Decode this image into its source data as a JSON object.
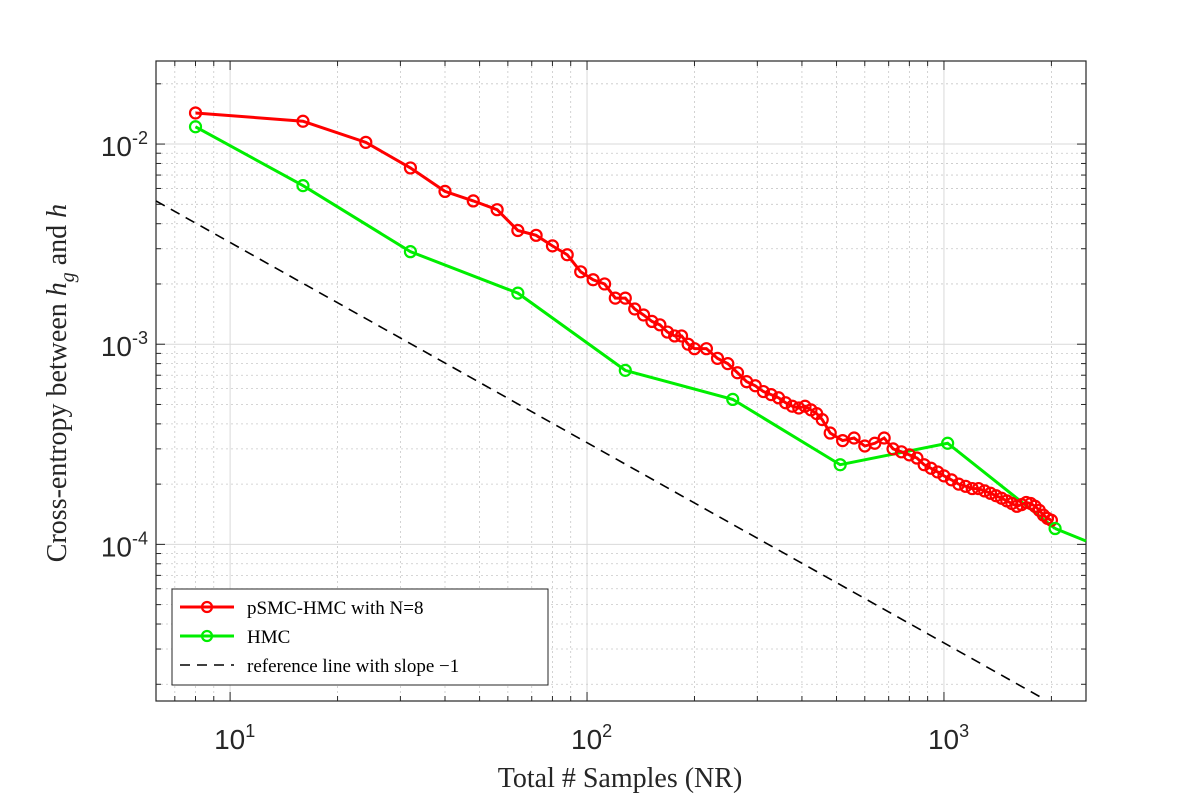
{
  "chart_data": {
    "type": "line",
    "xscale": "log",
    "yscale": "log",
    "xlim": [
      6.2,
      2500
    ],
    "ylim": [
      1.65e-05,
      0.026
    ],
    "xticks": [
      {
        "value": 10,
        "base": "10",
        "exp": "1"
      },
      {
        "value": 100,
        "base": "10",
        "exp": "2"
      },
      {
        "value": 1000,
        "base": "10",
        "exp": "3"
      }
    ],
    "yticks": [
      {
        "value": 0.0001,
        "base": "10",
        "exp": "-4"
      },
      {
        "value": 0.001,
        "base": "10",
        "exp": "-3"
      },
      {
        "value": 0.01,
        "base": "10",
        "exp": "-2"
      }
    ],
    "xlabel": "Total # Samples (NR)",
    "ylabel": {
      "prefix": "Cross-entropy between ",
      "var1": "h",
      "var1_sub": "g",
      "middle": " and ",
      "var2": "h"
    },
    "grid": true,
    "legend_position": "bottom-left",
    "colors": {
      "psmc": "#ff0000",
      "hmc": "#00ee00",
      "reference": "#000000"
    },
    "series": [
      {
        "name": "pSMC-HMC with N=8",
        "style": "solid-with-circle-markers",
        "color": "#ff0000",
        "x": [
          8,
          16,
          24,
          32,
          40,
          48,
          56,
          64,
          72,
          80,
          88,
          96,
          104,
          112,
          120,
          128,
          136,
          144,
          152,
          160,
          168,
          176,
          184,
          192,
          200,
          216,
          232,
          248,
          264,
          280,
          296,
          312,
          328,
          344,
          360,
          376,
          392,
          408,
          424,
          440,
          456,
          480,
          520,
          560,
          600,
          640,
          680,
          720,
          760,
          800,
          840,
          880,
          920,
          960,
          1000,
          1050,
          1100,
          1150,
          1200,
          1250,
          1300,
          1350,
          1400,
          1450,
          1500,
          1550,
          1600,
          1650,
          1700,
          1750,
          1800,
          1850,
          1900,
          1950,
          2000
        ],
        "y": [
          0.0143,
          0.013,
          0.0102,
          0.0076,
          0.0058,
          0.0052,
          0.0047,
          0.0037,
          0.0035,
          0.0031,
          0.0028,
          0.0023,
          0.0021,
          0.002,
          0.0017,
          0.0017,
          0.0015,
          0.0014,
          0.0013,
          0.00125,
          0.00115,
          0.0011,
          0.0011,
          0.001,
          0.00095,
          0.00095,
          0.00085,
          0.0008,
          0.00072,
          0.00065,
          0.00062,
          0.00058,
          0.00056,
          0.00054,
          0.00051,
          0.00049,
          0.00048,
          0.00049,
          0.00047,
          0.00045,
          0.00042,
          0.00036,
          0.00033,
          0.00034,
          0.00031,
          0.00032,
          0.00034,
          0.0003,
          0.00029,
          0.00028,
          0.00027,
          0.00025,
          0.00024,
          0.00023,
          0.00022,
          0.00021,
          0.0002,
          0.000195,
          0.00019,
          0.00019,
          0.000185,
          0.00018,
          0.000175,
          0.00017,
          0.000165,
          0.00016,
          0.000155,
          0.000158,
          0.000162,
          0.00016,
          0.000155,
          0.000148,
          0.00014,
          0.000135,
          0.000132
        ]
      },
      {
        "name": "HMC",
        "style": "solid-with-circle-markers",
        "color": "#00ee00",
        "x": [
          8,
          16,
          32,
          64,
          128,
          256,
          512,
          1024,
          2048
        ],
        "y": [
          0.0122,
          0.0062,
          0.0029,
          0.0018,
          0.00074,
          0.00053,
          0.00025,
          0.00032,
          0.00012
        ],
        "extension": {
          "x": [
            2048,
            2500
          ],
          "y": [
            0.00012,
            0.000104
          ]
        }
      },
      {
        "name": "reference line with slope −1",
        "style": "dashed",
        "color": "#000000",
        "x": [
          6.2,
          1860
        ],
        "y": [
          0.0052,
          1.73e-05
        ]
      }
    ]
  }
}
